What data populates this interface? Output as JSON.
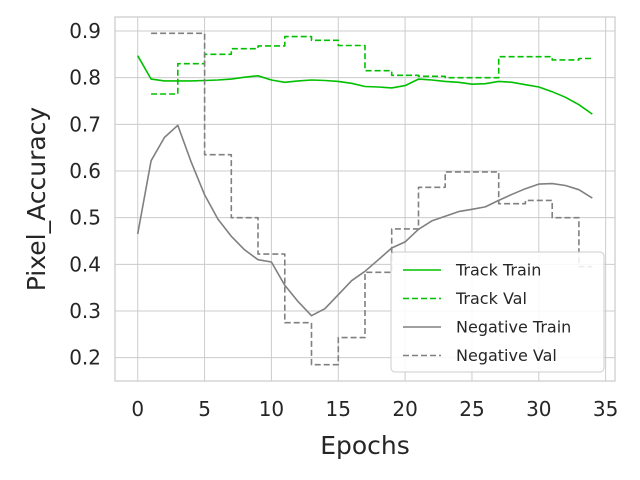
{
  "chart_data": {
    "type": "line",
    "title": "",
    "xlabel": "Epochs",
    "ylabel": "Pixel_Accuracy",
    "xlim": [
      -1.7,
      35.7
    ],
    "ylim": [
      0.15,
      0.93
    ],
    "xticks": [
      0,
      5,
      10,
      15,
      20,
      25,
      30,
      35
    ],
    "xtick_labels": [
      "0",
      "5",
      "10",
      "15",
      "20",
      "25",
      "30",
      "35"
    ],
    "yticks": [
      0.2,
      0.3,
      0.4,
      0.5,
      0.6,
      0.7,
      0.8,
      0.9
    ],
    "ytick_labels": [
      "0.2",
      "0.3",
      "0.4",
      "0.5",
      "0.6",
      "0.7",
      "0.8",
      "0.9"
    ],
    "grid": true,
    "legend_position": "lower-right",
    "series": [
      {
        "name": "Track Train",
        "color": "#00c000",
        "style": "solid",
        "x": [
          0,
          1,
          2,
          3,
          4,
          5,
          6,
          7,
          8,
          9,
          10,
          11,
          12,
          13,
          14,
          15,
          16,
          17,
          18,
          19,
          20,
          21,
          22,
          23,
          24,
          25,
          26,
          27,
          28,
          29,
          30,
          31,
          32,
          33,
          34
        ],
        "values": [
          0.847,
          0.797,
          0.793,
          0.793,
          0.793,
          0.794,
          0.795,
          0.797,
          0.801,
          0.804,
          0.795,
          0.79,
          0.793,
          0.795,
          0.794,
          0.792,
          0.788,
          0.781,
          0.78,
          0.778,
          0.783,
          0.797,
          0.795,
          0.792,
          0.79,
          0.786,
          0.787,
          0.792,
          0.79,
          0.785,
          0.78,
          0.77,
          0.758,
          0.742,
          0.722
        ]
      },
      {
        "name": "Track Val",
        "color": "#00c000",
        "style": "dashed",
        "x": [
          1,
          2,
          2,
          3,
          3,
          4,
          4,
          5,
          5,
          6,
          6,
          7,
          7,
          8,
          8,
          9,
          9,
          10,
          10,
          11,
          11,
          12,
          12,
          13,
          13,
          14,
          14,
          15,
          15,
          16,
          16,
          17,
          17,
          18,
          18,
          19,
          19,
          20,
          20,
          21,
          21,
          22,
          22,
          23,
          23,
          24,
          24,
          25,
          25,
          26,
          26,
          27,
          27,
          28,
          28,
          29,
          29,
          30,
          30,
          31,
          31,
          32,
          32,
          33,
          33,
          34
        ],
        "values": [
          0.765,
          0.765,
          0.765,
          0.765,
          0.83,
          0.83,
          0.83,
          0.83,
          0.85,
          0.85,
          0.85,
          0.85,
          0.862,
          0.862,
          0.862,
          0.862,
          0.868,
          0.868,
          0.868,
          0.868,
          0.888,
          0.888,
          0.888,
          0.888,
          0.88,
          0.88,
          0.88,
          0.88,
          0.869,
          0.869,
          0.869,
          0.869,
          0.815,
          0.815,
          0.815,
          0.815,
          0.805,
          0.805,
          0.805,
          0.805,
          0.803,
          0.803,
          0.803,
          0.803,
          0.8,
          0.8,
          0.8,
          0.8,
          0.8,
          0.8,
          0.8,
          0.8,
          0.845,
          0.845,
          0.845,
          0.845,
          0.845,
          0.845,
          0.845,
          0.845,
          0.838,
          0.838,
          0.838,
          0.838,
          0.841,
          0.841
        ]
      },
      {
        "name": "Negative Train",
        "color": "#808080",
        "style": "solid",
        "x": [
          0,
          1,
          2,
          3,
          4,
          5,
          6,
          7,
          8,
          9,
          10,
          11,
          12,
          13,
          14,
          15,
          16,
          17,
          18,
          19,
          20,
          21,
          22,
          23,
          24,
          25,
          26,
          27,
          28,
          29,
          30,
          31,
          32,
          33,
          34
        ],
        "values": [
          0.465,
          0.622,
          0.672,
          0.698,
          0.619,
          0.549,
          0.497,
          0.46,
          0.431,
          0.41,
          0.405,
          0.355,
          0.32,
          0.29,
          0.305,
          0.335,
          0.365,
          0.385,
          0.41,
          0.435,
          0.448,
          0.475,
          0.493,
          0.503,
          0.513,
          0.518,
          0.523,
          0.537,
          0.55,
          0.562,
          0.572,
          0.573,
          0.569,
          0.56,
          0.542
        ]
      },
      {
        "name": "Negative Val",
        "color": "#808080",
        "style": "dashed",
        "x": [
          1,
          2,
          2,
          3,
          3,
          4,
          4,
          5,
          5,
          6,
          6,
          7,
          7,
          8,
          8,
          9,
          9,
          10,
          10,
          11,
          11,
          12,
          12,
          13,
          13,
          14,
          14,
          15,
          15,
          16,
          16,
          17,
          17,
          18,
          18,
          19,
          19,
          20,
          20,
          21,
          21,
          22,
          22,
          23,
          23,
          24,
          24,
          25,
          25,
          26,
          26,
          27,
          27,
          28,
          28,
          29,
          29,
          30,
          30,
          31,
          31,
          32,
          32,
          33,
          33,
          34
        ],
        "values": [
          0.895,
          0.895,
          0.895,
          0.895,
          0.895,
          0.895,
          0.895,
          0.895,
          0.635,
          0.635,
          0.635,
          0.635,
          0.5,
          0.5,
          0.5,
          0.5,
          0.422,
          0.422,
          0.422,
          0.422,
          0.275,
          0.275,
          0.275,
          0.275,
          0.185,
          0.185,
          0.185,
          0.185,
          0.243,
          0.243,
          0.243,
          0.243,
          0.383,
          0.383,
          0.383,
          0.383,
          0.476,
          0.476,
          0.476,
          0.476,
          0.565,
          0.565,
          0.565,
          0.565,
          0.598,
          0.598,
          0.598,
          0.598,
          0.598,
          0.598,
          0.598,
          0.598,
          0.53,
          0.53,
          0.53,
          0.53,
          0.537,
          0.537,
          0.537,
          0.537,
          0.5,
          0.5,
          0.5,
          0.5,
          0.395,
          0.395
        ]
      }
    ]
  }
}
